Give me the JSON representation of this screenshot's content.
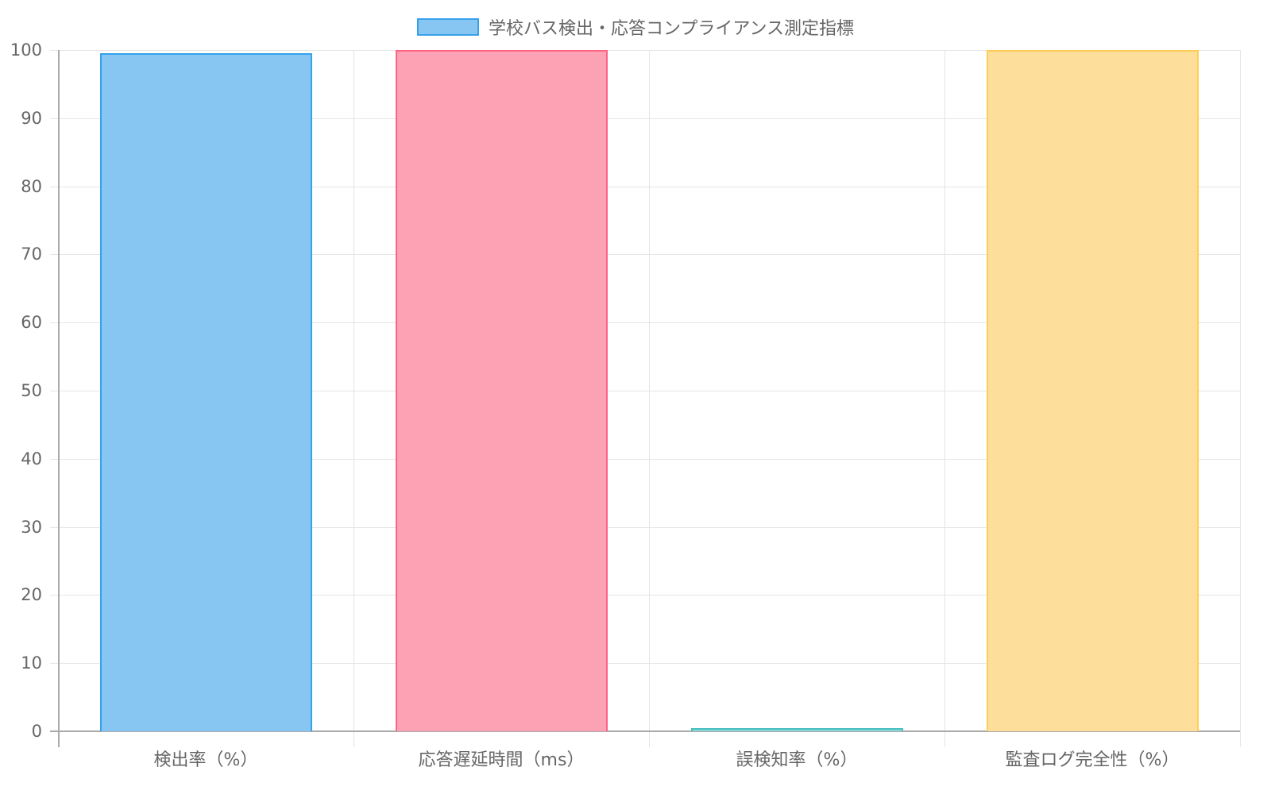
{
  "chart_data": {
    "type": "bar",
    "title": "",
    "legend": [
      {
        "label": "学校バス検出・応答コンプライアンス測定指標",
        "color": "#87c6f2",
        "border": "#36a2eb"
      }
    ],
    "legend_position": "top",
    "categories": [
      "検出率（%）",
      "応答遅延時間（ms）",
      "誤検知率（%）",
      "監査ログ完全性（%）"
    ],
    "series": [
      {
        "name": "学校バス検出・応答コンプライアンス測定指標",
        "values": [
          99.5,
          100,
          0.5,
          100
        ]
      }
    ],
    "bar_colors": [
      "#87c6f2",
      "#fda2b4",
      "#8ad6d6",
      "#fddf9b"
    ],
    "bar_borders": [
      "#36a2eb",
      "#ff6384",
      "#4bc0c0",
      "#ffcd56"
    ],
    "xlabel": "",
    "ylabel": "",
    "ylim": [
      0,
      100
    ],
    "yticks": [
      0,
      10,
      20,
      30,
      40,
      50,
      60,
      70,
      80,
      90,
      100
    ],
    "grid": true
  }
}
